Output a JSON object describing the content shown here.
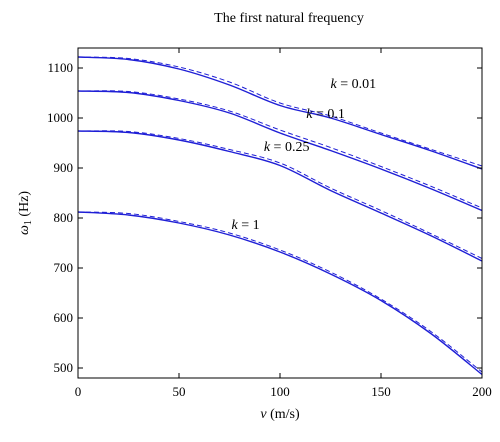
{
  "chart_data": {
    "type": "line",
    "title": "The first natural frequency",
    "xlabel": "v (m/s)",
    "ylabel": "ω1 (Hz)",
    "xlim": [
      0,
      200
    ],
    "ylim": [
      480,
      1140
    ],
    "xticks": [
      0,
      50,
      100,
      150,
      200
    ],
    "yticks": [
      500,
      600,
      700,
      800,
      900,
      1000,
      1100
    ],
    "grid": false,
    "colors": {
      "series": "#1f1fd6",
      "axes": "#000000"
    },
    "series": [
      {
        "k": "k = 0.01",
        "style": "solid",
        "x": [
          0,
          25,
          50,
          75,
          100,
          125,
          150,
          175,
          200
        ],
        "y": [
          1122,
          1117,
          1098,
          1066,
          1025,
          1000,
          967,
          934,
          898
        ]
      },
      {
        "k": "k = 0.01",
        "style": "dashed",
        "x": [
          0,
          25,
          50,
          75,
          100,
          125,
          150,
          175,
          200
        ],
        "y": [
          1122,
          1119,
          1102,
          1072,
          1030,
          1004,
          970,
          937,
          904
        ]
      },
      {
        "k": "k = 0.1",
        "style": "solid",
        "x": [
          0,
          25,
          50,
          75,
          100,
          125,
          150,
          175,
          200
        ],
        "y": [
          1054,
          1051,
          1035,
          1010,
          970,
          935,
          898,
          858,
          815
        ]
      },
      {
        "k": "k = 0.1",
        "style": "dashed",
        "x": [
          0,
          25,
          50,
          75,
          100,
          125,
          150,
          175,
          200
        ],
        "y": [
          1054,
          1053,
          1038,
          1014,
          976,
          941,
          903,
          863,
          820
        ]
      },
      {
        "k": "k = 0.25",
        "style": "solid",
        "x": [
          0,
          25,
          50,
          75,
          100,
          125,
          150,
          175,
          200
        ],
        "y": [
          974,
          971,
          956,
          933,
          905,
          855,
          810,
          764,
          714
        ]
      },
      {
        "k": "k = 0.25",
        "style": "dashed",
        "x": [
          0,
          25,
          50,
          75,
          100,
          125,
          150,
          175,
          200
        ],
        "y": [
          974,
          973,
          959,
          937,
          910,
          860,
          815,
          768,
          719
        ]
      },
      {
        "k": "k = 1",
        "style": "solid",
        "x": [
          0,
          25,
          50,
          75,
          100,
          125,
          150,
          175,
          200
        ],
        "y": [
          812,
          806,
          790,
          766,
          732,
          688,
          635,
          568,
          487
        ]
      },
      {
        "k": "k = 1",
        "style": "dashed",
        "x": [
          0,
          25,
          50,
          75,
          100,
          125,
          150,
          175,
          200
        ],
        "y": [
          812,
          809,
          793,
          770,
          736,
          692,
          638,
          572,
          492
        ]
      }
    ],
    "annotations": [
      {
        "k_sym": "k",
        "text": " = 0.01",
        "x": 125,
        "y": 1060
      },
      {
        "k_sym": "k",
        "text": " = 0.1",
        "x": 113,
        "y": 1000
      },
      {
        "k_sym": "k",
        "text": " = 0.25",
        "x": 92,
        "y": 934
      },
      {
        "k_sym": "k",
        "text": " = 1",
        "x": 76,
        "y": 778
      }
    ]
  }
}
